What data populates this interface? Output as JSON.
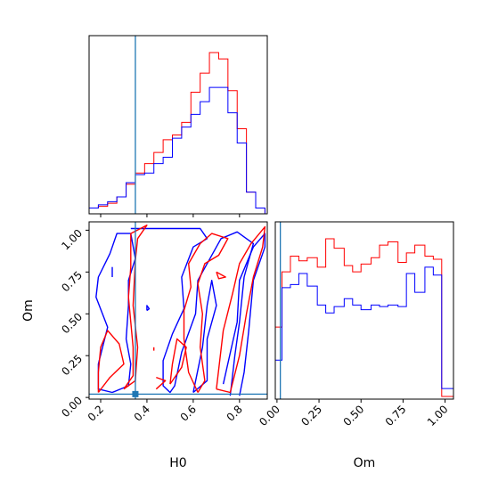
{
  "chart_data": {
    "type": "corner",
    "colors": {
      "red": "#ff0000",
      "blue": "#0000ff",
      "truth": "#1f77b4"
    },
    "truth": {
      "H0": 0.35,
      "Om": 0.02
    },
    "parameters": [
      "H0",
      "Om"
    ],
    "xlabels": {
      "H0": "H0",
      "Om": "Om"
    },
    "ylabel": "Om",
    "h0_range": [
      0.15,
      0.92
    ],
    "om_range": [
      -0.01,
      1.05
    ],
    "h0_ticks": [
      "0.2",
      "0.4",
      "0.6",
      "0.8"
    ],
    "om_ticks": [
      "0.00",
      "0.25",
      "0.50",
      "0.75",
      "1.00"
    ],
    "hist_h0": {
      "edges": [
        0.15,
        0.19,
        0.23,
        0.27,
        0.31,
        0.35,
        0.39,
        0.43,
        0.47,
        0.51,
        0.55,
        0.59,
        0.63,
        0.67,
        0.71,
        0.75,
        0.79,
        0.83,
        0.87,
        0.91
      ],
      "series": [
        {
          "color": "red",
          "values": [
            0.02,
            0.03,
            0.05,
            0.09,
            0.17,
            0.24,
            0.3,
            0.37,
            0.45,
            0.48,
            0.56,
            0.75,
            0.87,
            1.0,
            0.96,
            0.76,
            0.52,
            0.12,
            0.02
          ]
        },
        {
          "color": "blue",
          "values": [
            0.02,
            0.04,
            0.06,
            0.09,
            0.18,
            0.23,
            0.24,
            0.3,
            0.34,
            0.46,
            0.53,
            0.61,
            0.69,
            0.78,
            0.78,
            0.62,
            0.43,
            0.12,
            0.02
          ]
        }
      ]
    },
    "hist_om": {
      "edges": [
        -0.01,
        0.03,
        0.08,
        0.13,
        0.18,
        0.24,
        0.29,
        0.34,
        0.4,
        0.45,
        0.5,
        0.56,
        0.61,
        0.66,
        0.72,
        0.77,
        0.82,
        0.88,
        0.93,
        0.98,
        1.05
      ],
      "series": [
        {
          "color": "red",
          "values": [
            0.44,
            0.79,
            0.89,
            0.86,
            0.88,
            0.82,
            1.0,
            0.94,
            0.83,
            0.79,
            0.84,
            0.88,
            0.96,
            0.98,
            0.85,
            0.91,
            0.96,
            0.89,
            0.87,
            0.0
          ]
        },
        {
          "color": "blue",
          "values": [
            0.23,
            0.69,
            0.71,
            0.78,
            0.7,
            0.58,
            0.53,
            0.57,
            0.62,
            0.58,
            0.55,
            0.58,
            0.57,
            0.58,
            0.57,
            0.78,
            0.66,
            0.82,
            0.77,
            0.05
          ]
        }
      ]
    },
    "contours": [
      {
        "color": "blue",
        "points": [
          [
            0.25,
            0.03
          ],
          [
            0.32,
            0.07
          ],
          [
            0.33,
            0.2
          ],
          [
            0.31,
            0.35
          ],
          [
            0.32,
            0.55
          ],
          [
            0.32,
            0.7
          ],
          [
            0.35,
            0.83
          ],
          [
            0.33,
            0.98
          ],
          [
            0.27,
            0.98
          ],
          [
            0.24,
            0.86
          ],
          [
            0.19,
            0.72
          ],
          [
            0.18,
            0.6
          ],
          [
            0.23,
            0.42
          ],
          [
            0.19,
            0.2
          ],
          [
            0.19,
            0.05
          ],
          [
            0.25,
            0.03
          ]
        ]
      },
      {
        "color": "blue",
        "points": [
          [
            0.33,
            1.01
          ],
          [
            0.63,
            1.01
          ],
          [
            0.66,
            0.95
          ],
          [
            0.6,
            0.9
          ],
          [
            0.55,
            0.72
          ],
          [
            0.56,
            0.53
          ],
          [
            0.51,
            0.38
          ],
          [
            0.47,
            0.22
          ],
          [
            0.47,
            0.07
          ],
          [
            0.5,
            0.03
          ],
          [
            0.52,
            0.07
          ],
          [
            0.55,
            0.27
          ],
          [
            0.61,
            0.5
          ],
          [
            0.62,
            0.7
          ],
          [
            0.72,
            0.95
          ],
          [
            0.79,
            0.99
          ],
          [
            0.86,
            0.92
          ],
          [
            0.82,
            0.72
          ],
          [
            0.8,
            0.45
          ],
          [
            0.78,
            0.25
          ],
          [
            0.76,
            0.01
          ]
        ]
      },
      {
        "color": "blue",
        "points": [
          [
            0.6,
            0.03
          ],
          [
            0.64,
            0.3
          ],
          [
            0.66,
            0.55
          ],
          [
            0.68,
            0.7
          ],
          [
            0.7,
            0.55
          ],
          [
            0.66,
            0.35
          ],
          [
            0.66,
            0.1
          ],
          [
            0.6,
            0.03
          ]
        ]
      },
      {
        "color": "blue",
        "points": [
          [
            0.73,
            0.08
          ],
          [
            0.79,
            0.45
          ],
          [
            0.8,
            0.7
          ],
          [
            0.86,
            0.9
          ],
          [
            0.91,
            0.98
          ],
          [
            0.91,
            0.9
          ],
          [
            0.86,
            0.7
          ],
          [
            0.84,
            0.4
          ],
          [
            0.82,
            0.15
          ],
          [
            0.8,
            0.01
          ]
        ]
      },
      {
        "color": "red",
        "points": [
          [
            0.3,
            0.05
          ],
          [
            0.34,
            0.13
          ],
          [
            0.34,
            0.3
          ],
          [
            0.33,
            0.45
          ],
          [
            0.32,
            0.6
          ],
          [
            0.33,
            0.78
          ],
          [
            0.33,
            0.98
          ],
          [
            0.4,
            1.03
          ],
          [
            0.36,
            0.95
          ],
          [
            0.35,
            0.82
          ],
          [
            0.34,
            0.55
          ],
          [
            0.36,
            0.3
          ],
          [
            0.35,
            0.1
          ],
          [
            0.3,
            0.05
          ]
        ]
      },
      {
        "color": "red",
        "points": [
          [
            0.19,
            0.03
          ],
          [
            0.24,
            0.12
          ],
          [
            0.3,
            0.2
          ],
          [
            0.28,
            0.32
          ],
          [
            0.23,
            0.4
          ],
          [
            0.2,
            0.3
          ],
          [
            0.19,
            0.15
          ],
          [
            0.19,
            0.03
          ]
        ]
      },
      {
        "color": "red",
        "points": [
          [
            0.62,
            0.03
          ],
          [
            0.58,
            0.15
          ],
          [
            0.56,
            0.35
          ],
          [
            0.56,
            0.52
          ],
          [
            0.59,
            0.66
          ],
          [
            0.58,
            0.8
          ],
          [
            0.63,
            0.92
          ],
          [
            0.68,
            0.98
          ],
          [
            0.75,
            0.95
          ],
          [
            0.71,
            0.85
          ],
          [
            0.65,
            0.8
          ],
          [
            0.62,
            0.68
          ],
          [
            0.64,
            0.5
          ],
          [
            0.63,
            0.3
          ],
          [
            0.65,
            0.1
          ],
          [
            0.62,
            0.03
          ]
        ]
      },
      {
        "color": "red",
        "points": [
          [
            0.7,
            0.05
          ],
          [
            0.73,
            0.4
          ],
          [
            0.77,
            0.62
          ],
          [
            0.8,
            0.8
          ],
          [
            0.85,
            0.92
          ],
          [
            0.91,
            1.02
          ],
          [
            0.9,
            0.9
          ],
          [
            0.86,
            0.72
          ],
          [
            0.83,
            0.5
          ],
          [
            0.8,
            0.25
          ],
          [
            0.76,
            0.03
          ],
          [
            0.7,
            0.05
          ]
        ]
      },
      {
        "color": "red",
        "points": [
          [
            0.5,
            0.08
          ],
          [
            0.55,
            0.18
          ],
          [
            0.57,
            0.3
          ],
          [
            0.53,
            0.35
          ],
          [
            0.51,
            0.2
          ],
          [
            0.5,
            0.08
          ]
        ]
      },
      {
        "color": "red",
        "points": [
          [
            0.7,
            0.75
          ],
          [
            0.74,
            0.72
          ],
          [
            0.71,
            0.71
          ],
          [
            0.7,
            0.75
          ]
        ]
      },
      {
        "color": "blue",
        "points": [
          [
            0.25,
            0.78
          ],
          [
            0.25,
            0.72
          ]
        ]
      },
      {
        "color": "blue",
        "points": [
          [
            0.4,
            0.52
          ],
          [
            0.4,
            0.55
          ],
          [
            0.41,
            0.53
          ],
          [
            0.4,
            0.52
          ]
        ]
      },
      {
        "color": "red",
        "points": [
          [
            0.43,
            0.28
          ],
          [
            0.43,
            0.3
          ]
        ]
      },
      {
        "color": "red",
        "points": [
          [
            0.44,
            0.05
          ],
          [
            0.48,
            0.1
          ],
          [
            0.44,
            0.12
          ]
        ]
      }
    ]
  }
}
